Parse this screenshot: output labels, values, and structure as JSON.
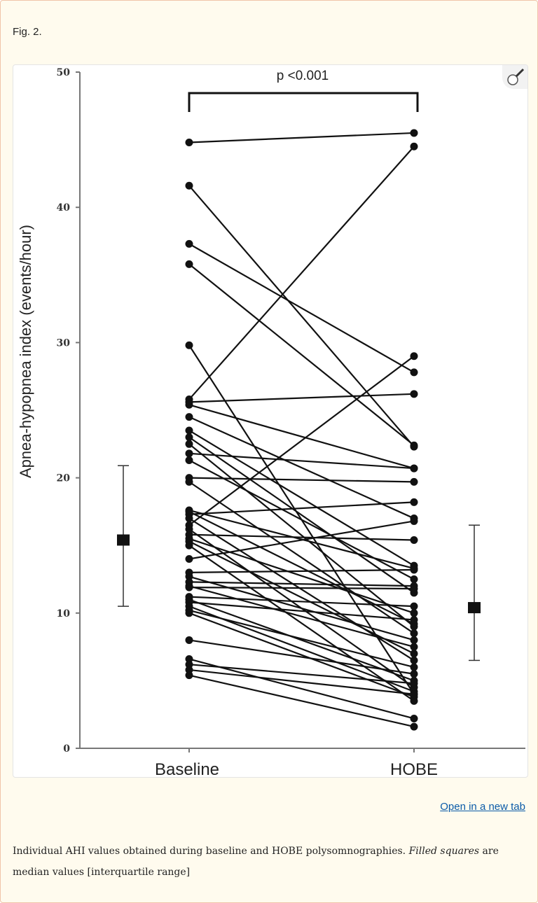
{
  "figure_label": "Fig. 2.",
  "open_new_tab": "Open in a new tab",
  "caption": {
    "part1": "Individual AHI values obtained during baseline and HOBE polysomnographies. ",
    "italic": "Filled squares",
    "part2": " are median values [interquartile range]"
  },
  "icons": {
    "zoom": "magnifier-icon"
  },
  "chart_data": {
    "type": "line",
    "title": "",
    "annotation": "p <0.001",
    "xlabel": "",
    "ylabel": "Apnea-hypopnea index (events/hour)",
    "categories": [
      "Baseline",
      "HOBE"
    ],
    "ylim": [
      0,
      50
    ],
    "yticks": [
      "0",
      "10",
      "20",
      "30",
      "40",
      "50"
    ],
    "grid": false,
    "pairs": [
      [
        44.8,
        45.5
      ],
      [
        41.6,
        22.3
      ],
      [
        37.3,
        27.8
      ],
      [
        35.8,
        22.4
      ],
      [
        29.8,
        4.0
      ],
      [
        25.8,
        44.5
      ],
      [
        25.6,
        26.2
      ],
      [
        25.4,
        20.7
      ],
      [
        24.5,
        17.0
      ],
      [
        23.5,
        13.5
      ],
      [
        23.0,
        11.5
      ],
      [
        22.5,
        9.0
      ],
      [
        21.8,
        20.7
      ],
      [
        21.3,
        12.5
      ],
      [
        20.0,
        19.7
      ],
      [
        19.7,
        8.5
      ],
      [
        17.6,
        13.3
      ],
      [
        17.5,
        9.2
      ],
      [
        17.3,
        18.2
      ],
      [
        17.0,
        6.5
      ],
      [
        16.5,
        29.0
      ],
      [
        16.2,
        4.5
      ],
      [
        15.8,
        15.4
      ],
      [
        15.5,
        10.0
      ],
      [
        15.3,
        7.0
      ],
      [
        15.0,
        3.5
      ],
      [
        14.0,
        16.8
      ],
      [
        13.0,
        13.2
      ],
      [
        12.7,
        8.0
      ],
      [
        12.3,
        12.0
      ],
      [
        12.0,
        7.5
      ],
      [
        11.9,
        11.8
      ],
      [
        11.2,
        10.5
      ],
      [
        11.0,
        5.0
      ],
      [
        10.8,
        9.5
      ],
      [
        10.5,
        4.2
      ],
      [
        10.2,
        6.0
      ],
      [
        10.0,
        3.8
      ],
      [
        8.0,
        5.5
      ],
      [
        6.6,
        2.2
      ],
      [
        6.2,
        4.8
      ],
      [
        5.8,
        4.0
      ],
      [
        5.4,
        1.6
      ]
    ],
    "medians": [
      {
        "group": "Baseline",
        "median": 15.4,
        "q1": 10.5,
        "q3": 20.9
      },
      {
        "group": "HOBE",
        "median": 10.4,
        "q1": 6.5,
        "q3": 16.5
      }
    ]
  }
}
